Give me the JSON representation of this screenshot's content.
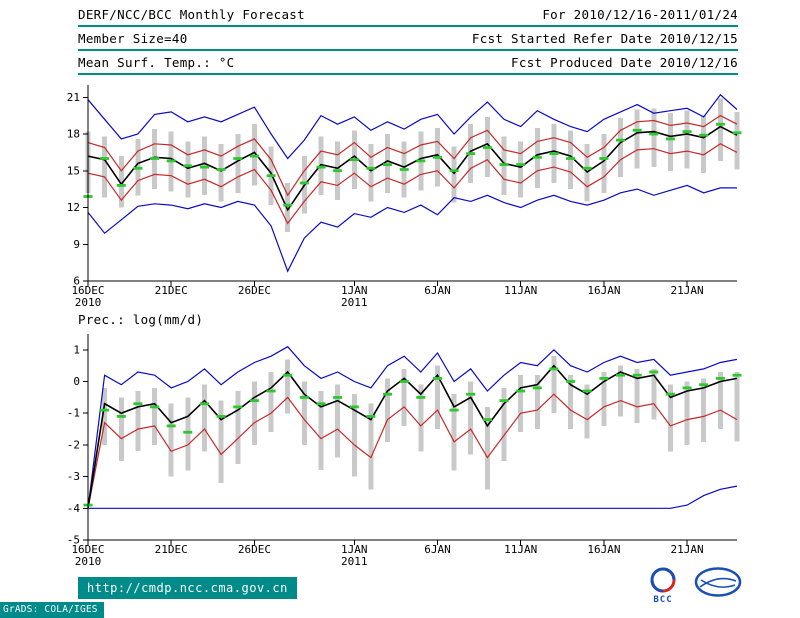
{
  "header": {
    "title": "DERF/NCC/BCC Monthly Forecast",
    "for_range": "For 2010/12/16-2011/01/24",
    "member_size": "Member Size=40",
    "fcst_start": "Fcst Started Refer Date 2010/12/15",
    "temp_label": "Mean Surf. Temp.: °C",
    "fcst_produced": "Fcst Produced Date 2010/12/16"
  },
  "footer": {
    "url": "http://cmdp.ncc.cma.gov.cn",
    "grads": "GrADS: COLA/IGES",
    "logo_bcc": "BCC"
  },
  "colors": {
    "blue": "#0a0ac8",
    "red": "#c82828",
    "black": "#000000",
    "green": "#2dc82d",
    "bar": "#c9c9c9",
    "teal": "#008b8b"
  },
  "chart_data": [
    {
      "type": "line",
      "title": "Mean Surf. Temp.: °C",
      "ylabel": "",
      "ylim": [
        6,
        22
      ],
      "yticks": [
        6,
        9,
        12,
        15,
        18,
        21
      ],
      "grid": false,
      "xticks": [
        {
          "day": 0,
          "label": "16DEC",
          "year": "2010"
        },
        {
          "day": 5,
          "label": "21DEC"
        },
        {
          "day": 10,
          "label": "26DEC"
        },
        {
          "day": 16,
          "label": "1JAN",
          "year": "2011"
        },
        {
          "day": 21,
          "label": "6JAN"
        },
        {
          "day": 26,
          "label": "11JAN"
        },
        {
          "day": 31,
          "label": "16JAN"
        },
        {
          "day": 36,
          "label": "21JAN"
        }
      ],
      "series": [
        {
          "name": "ensemble-max",
          "color": "blue",
          "values": [
            20.8,
            19.2,
            17.6,
            18.0,
            19.6,
            19.8,
            19.0,
            19.4,
            19.0,
            19.6,
            20.2,
            18.0,
            16.0,
            17.5,
            19.5,
            18.8,
            19.4,
            18.3,
            19.0,
            18.4,
            19.2,
            19.6,
            18.0,
            19.4,
            20.6,
            19.2,
            18.6,
            19.9,
            19.2,
            18.6,
            18.2,
            19.2,
            19.8,
            20.4,
            19.7,
            19.9,
            20.1,
            19.4,
            21.2,
            20.0
          ]
        },
        {
          "name": "ensemble-min",
          "color": "blue",
          "values": [
            11.6,
            9.9,
            11.0,
            12.1,
            12.3,
            12.2,
            11.9,
            12.3,
            12.0,
            12.5,
            12.2,
            10.5,
            6.8,
            9.5,
            10.8,
            10.4,
            11.5,
            11.2,
            12.0,
            11.6,
            12.2,
            11.4,
            12.8,
            12.5,
            13.0,
            12.4,
            12.0,
            12.6,
            13.0,
            12.5,
            12.2,
            12.6,
            13.2,
            13.5,
            13.0,
            13.4,
            13.8,
            13.2,
            13.6,
            13.6
          ]
        },
        {
          "name": "upper-bound",
          "color": "red",
          "values": [
            17.3,
            16.9,
            15.0,
            16.6,
            17.2,
            17.1,
            16.3,
            16.7,
            16.2,
            17.0,
            17.6,
            15.9,
            13.0,
            15.0,
            16.6,
            16.3,
            17.3,
            16.1,
            16.9,
            16.4,
            17.1,
            17.4,
            16.0,
            17.7,
            18.3,
            16.7,
            16.4,
            17.4,
            17.7,
            17.3,
            16.1,
            16.9,
            18.3,
            19.0,
            19.1,
            18.7,
            18.9,
            18.6,
            19.5,
            18.8
          ]
        },
        {
          "name": "lower-bound",
          "color": "red",
          "values": [
            14.8,
            14.5,
            12.6,
            14.2,
            14.7,
            14.6,
            13.9,
            14.3,
            13.7,
            14.5,
            15.1,
            13.4,
            10.7,
            12.5,
            14.1,
            13.8,
            14.8,
            13.7,
            14.4,
            13.9,
            14.7,
            15.0,
            13.6,
            15.2,
            15.9,
            14.3,
            14.0,
            15.0,
            15.3,
            14.9,
            13.7,
            14.5,
            15.9,
            16.7,
            16.8,
            16.4,
            16.6,
            16.3,
            17.2,
            16.5
          ]
        },
        {
          "name": "ensemble-mean",
          "color": "black",
          "width": 1.6,
          "values": [
            16.2,
            15.9,
            13.9,
            15.6,
            16.1,
            16.0,
            15.2,
            15.6,
            15.0,
            15.8,
            16.5,
            14.8,
            11.8,
            13.8,
            15.5,
            15.2,
            16.2,
            15.0,
            15.8,
            15.3,
            16.0,
            16.3,
            14.8,
            16.6,
            17.2,
            15.6,
            15.3,
            16.3,
            16.6,
            16.2,
            14.9,
            15.8,
            17.3,
            18.1,
            18.2,
            17.8,
            18.0,
            17.7,
            18.6,
            17.9
          ]
        },
        {
          "name": "observation",
          "color": "green",
          "style": "dashes",
          "values": [
            12.9,
            16.0,
            13.8,
            15.2,
            16.0,
            15.8,
            15.4,
            15.3,
            15.1,
            16.0,
            16.2,
            14.6,
            12.2,
            14.0,
            15.3,
            15.0,
            15.9,
            15.2,
            15.5,
            15.1,
            15.8,
            16.1,
            15.0,
            16.4,
            16.9,
            15.5,
            15.5,
            16.1,
            16.4,
            16.0,
            15.2,
            16.0,
            17.5,
            18.3,
            18.0,
            17.6,
            18.2,
            17.9,
            18.8,
            18.1
          ]
        }
      ],
      "bars": {
        "name": "ensemble-spread",
        "low": [
          13.2,
          12.8,
          12.0,
          13.0,
          13.5,
          13.3,
          12.8,
          13.0,
          12.5,
          13.2,
          13.8,
          12.2,
          10.0,
          11.5,
          13.0,
          12.6,
          13.5,
          12.5,
          13.2,
          12.8,
          13.4,
          13.7,
          12.4,
          14.0,
          14.5,
          13.0,
          12.8,
          13.6,
          14.0,
          13.5,
          12.5,
          13.2,
          14.5,
          15.2,
          15.3,
          15.0,
          15.2,
          14.8,
          15.8,
          15.1
        ],
        "high": [
          18.2,
          17.8,
          16.2,
          17.6,
          18.4,
          18.2,
          17.4,
          17.8,
          17.2,
          18.0,
          18.8,
          17.0,
          14.0,
          16.2,
          17.8,
          17.4,
          18.3,
          17.2,
          18.0,
          17.4,
          18.2,
          18.5,
          17.0,
          18.8,
          19.4,
          17.8,
          17.4,
          18.5,
          18.8,
          18.3,
          17.2,
          18.0,
          19.3,
          20.0,
          20.1,
          19.7,
          19.9,
          19.5,
          20.9,
          19.8
        ]
      }
    },
    {
      "type": "line",
      "title": "Prec.: log(mm/d)",
      "ylabel": "",
      "ylim": [
        -5,
        1.5
      ],
      "yticks": [
        1,
        0,
        -1,
        -2,
        -3,
        -4,
        -5
      ],
      "grid": false,
      "xticks": [
        {
          "day": 0,
          "label": "16DEC",
          "year": "2010"
        },
        {
          "day": 5,
          "label": "21DEC"
        },
        {
          "day": 10,
          "label": "26DEC"
        },
        {
          "day": 16,
          "label": "1JAN",
          "year": "2011"
        },
        {
          "day": 21,
          "label": "6JAN"
        },
        {
          "day": 26,
          "label": "11JAN"
        },
        {
          "day": 31,
          "label": "16JAN"
        },
        {
          "day": 36,
          "label": "21JAN"
        }
      ],
      "series": [
        {
          "name": "ensemble-max",
          "color": "blue",
          "values": [
            -4.0,
            0.2,
            -0.1,
            0.3,
            0.2,
            -0.2,
            0.0,
            0.4,
            -0.1,
            0.3,
            0.6,
            0.8,
            1.1,
            0.5,
            0.1,
            0.3,
            0.0,
            -0.2,
            0.5,
            0.8,
            0.3,
            0.9,
            0.0,
            0.4,
            -0.3,
            0.2,
            0.6,
            0.5,
            1.0,
            0.5,
            0.3,
            0.6,
            0.8,
            0.6,
            0.7,
            0.2,
            0.3,
            0.4,
            0.6,
            0.7
          ]
        },
        {
          "name": "ensemble-min",
          "color": "blue",
          "values": [
            -4.0,
            -4.0,
            -4.0,
            -4.0,
            -4.0,
            -4.0,
            -4.0,
            -4.0,
            -4.0,
            -4.0,
            -4.0,
            -4.0,
            -4.0,
            -4.0,
            -4.0,
            -4.0,
            -4.0,
            -4.0,
            -4.0,
            -4.0,
            -4.0,
            -4.0,
            -4.0,
            -4.0,
            -4.0,
            -4.0,
            -4.0,
            -4.0,
            -4.0,
            -4.0,
            -4.0,
            -4.0,
            -4.0,
            -4.0,
            -4.0,
            -4.0,
            -3.9,
            -3.6,
            -3.4,
            -3.3
          ]
        },
        {
          "name": "lower-bound",
          "color": "red",
          "values": [
            -4.0,
            -1.3,
            -1.8,
            -1.5,
            -1.4,
            -2.2,
            -2.0,
            -1.5,
            -2.3,
            -1.8,
            -1.3,
            -1.0,
            -0.5,
            -1.2,
            -1.8,
            -1.5,
            -2.0,
            -2.4,
            -1.2,
            -0.8,
            -1.4,
            -0.9,
            -1.9,
            -1.5,
            -2.4,
            -1.7,
            -1.0,
            -0.9,
            -0.4,
            -0.9,
            -1.2,
            -0.8,
            -0.6,
            -0.8,
            -0.7,
            -1.4,
            -1.2,
            -1.1,
            -0.9,
            -1.2
          ]
        },
        {
          "name": "ensemble-mean",
          "color": "black",
          "width": 1.6,
          "values": [
            -4.0,
            -0.7,
            -1.0,
            -0.8,
            -0.7,
            -1.3,
            -1.1,
            -0.6,
            -1.2,
            -0.9,
            -0.5,
            -0.2,
            0.3,
            -0.4,
            -0.8,
            -0.6,
            -0.9,
            -1.2,
            -0.3,
            0.1,
            -0.4,
            0.2,
            -0.8,
            -0.5,
            -1.4,
            -0.7,
            -0.2,
            -0.1,
            0.5,
            -0.1,
            -0.4,
            0.0,
            0.3,
            0.1,
            0.2,
            -0.5,
            -0.3,
            -0.2,
            0.0,
            0.1
          ]
        },
        {
          "name": "observation",
          "color": "green",
          "style": "dashes",
          "values": [
            -3.9,
            -0.9,
            -1.1,
            -0.7,
            -0.8,
            -1.4,
            -1.6,
            -0.7,
            -1.1,
            -0.8,
            -0.6,
            -0.3,
            0.2,
            -0.5,
            -0.7,
            -0.5,
            -0.8,
            -1.1,
            -0.4,
            0.0,
            -0.5,
            0.1,
            -0.9,
            -0.4,
            -1.2,
            -0.6,
            -0.3,
            -0.2,
            0.4,
            0.0,
            -0.3,
            0.1,
            0.2,
            0.2,
            0.3,
            -0.4,
            -0.2,
            -0.1,
            0.1,
            0.2
          ]
        }
      ],
      "bars": {
        "name": "ensemble-spread",
        "low": [
          -4.0,
          -2.0,
          -2.5,
          -2.2,
          -2.0,
          -3.0,
          -2.8,
          -2.2,
          -3.2,
          -2.6,
          -2.0,
          -1.6,
          -1.0,
          -2.0,
          -2.8,
          -2.4,
          -3.0,
          -3.4,
          -1.9,
          -1.4,
          -2.2,
          -1.5,
          -2.8,
          -2.3,
          -3.4,
          -2.5,
          -1.6,
          -1.5,
          -1.0,
          -1.5,
          -1.8,
          -1.4,
          -1.1,
          -1.3,
          -1.2,
          -2.2,
          -2.0,
          -1.9,
          -1.5,
          -1.9
        ],
        "high": [
          -4.0,
          -0.2,
          -0.5,
          -0.3,
          -0.2,
          -0.7,
          -0.5,
          -0.1,
          -0.6,
          -0.3,
          0.0,
          0.3,
          0.7,
          0.0,
          -0.3,
          -0.1,
          -0.4,
          -0.7,
          0.1,
          0.4,
          -0.1,
          0.5,
          -0.4,
          0.0,
          -0.8,
          -0.2,
          0.2,
          0.2,
          0.8,
          0.2,
          -0.1,
          0.3,
          0.5,
          0.4,
          0.4,
          -0.1,
          0.0,
          0.1,
          0.3,
          0.3
        ]
      }
    }
  ]
}
